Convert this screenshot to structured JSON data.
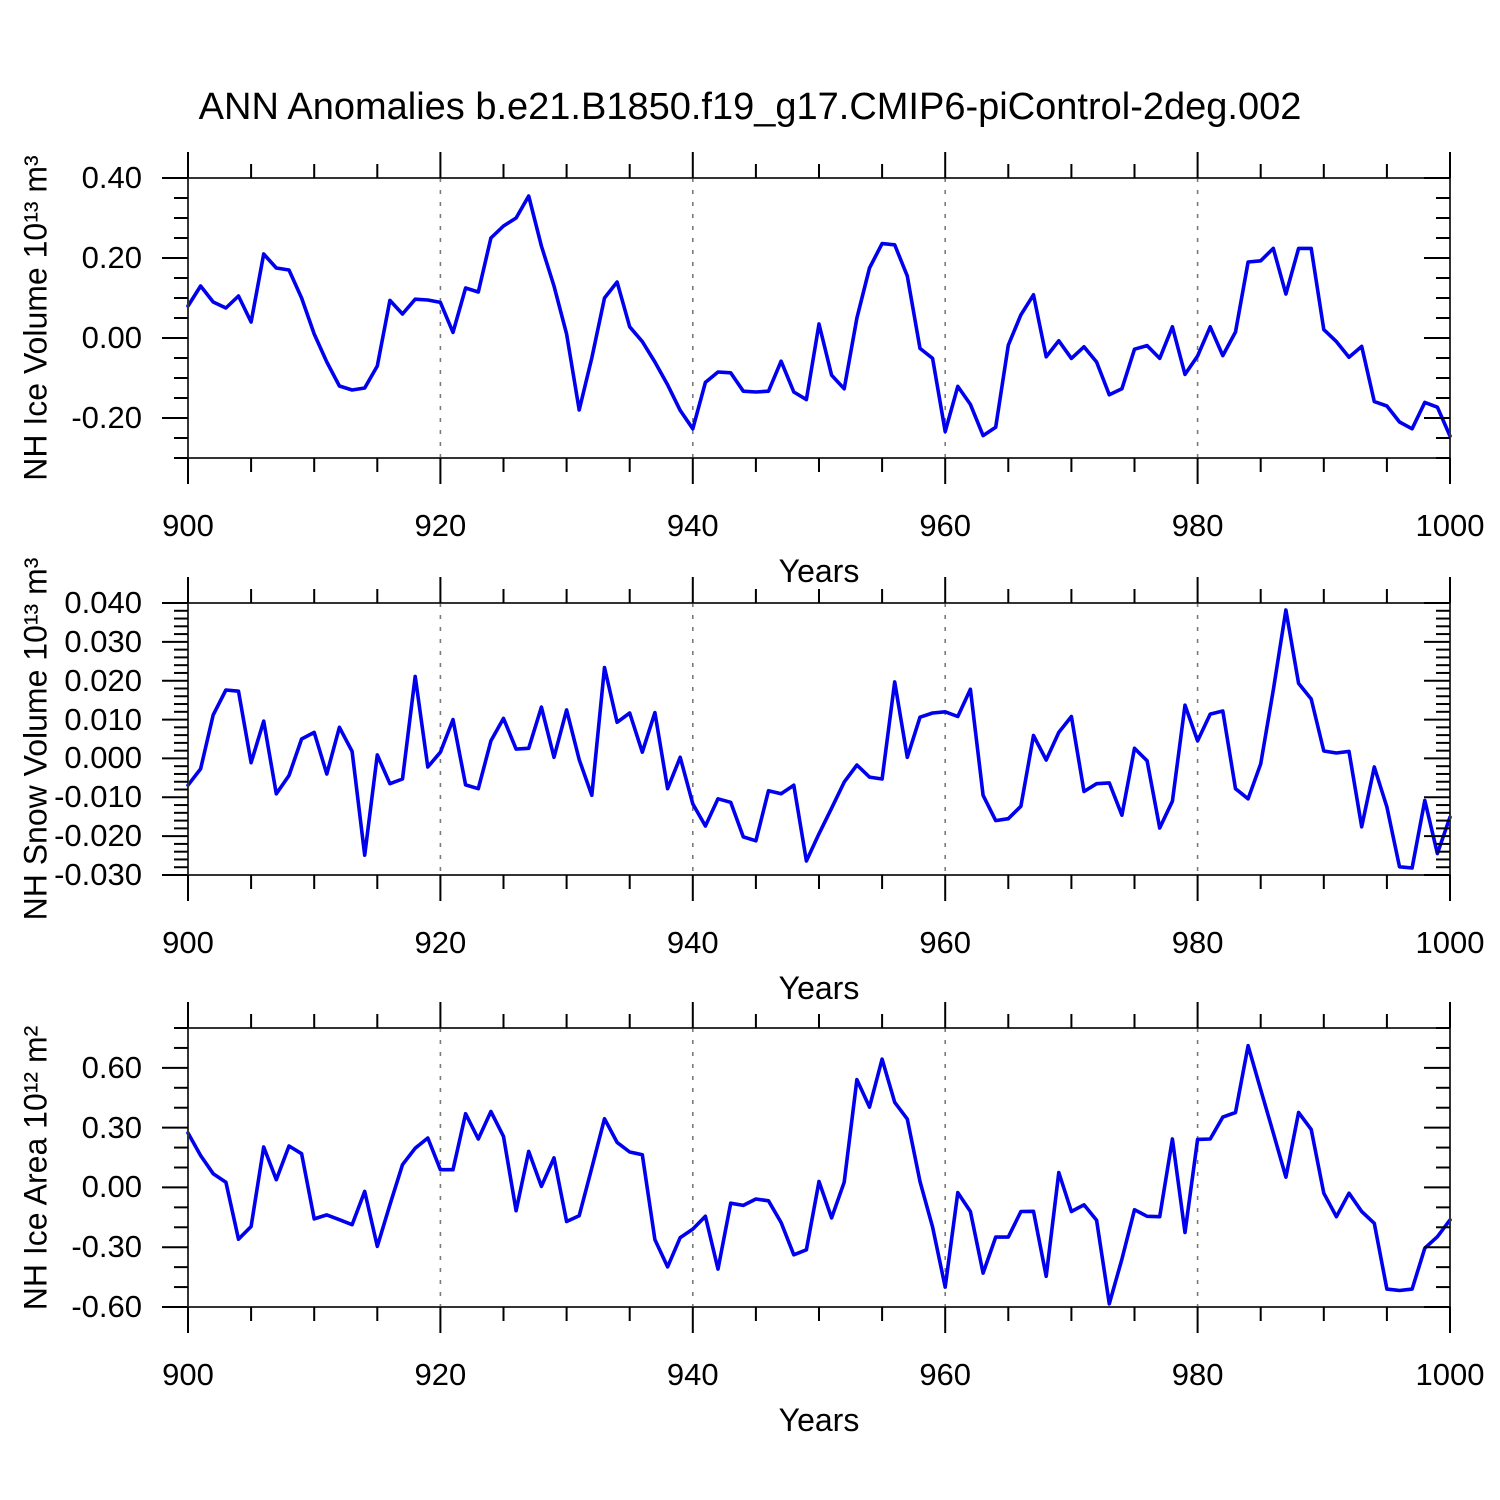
{
  "title": "ANN Anomalies b.e21.B1850.f19_g17.CMIP6-piControl-2deg.002",
  "colors": {
    "line": "#0000EE",
    "frame": "#333333",
    "tick": "#000000",
    "grid": "#7a7a7a",
    "background": "#ffffff",
    "text": "#000000"
  },
  "chart_data": [
    {
      "type": "line",
      "name": "nh-ice-volume",
      "ylabel": "NH Ice Volume 10¹³ m³",
      "xlabel": "Years",
      "x_start": 900,
      "x_end": 1000,
      "x_step": 1,
      "xticks": [
        900,
        920,
        940,
        960,
        980,
        1000
      ],
      "x_minor_step": 5,
      "grid_years": [
        920,
        940,
        960,
        980
      ],
      "ylim": [
        -0.3,
        0.4
      ],
      "ytick_values": [
        0.4,
        0.2,
        0.0,
        -0.2
      ],
      "ytick_labels": [
        "0.40",
        "0.20",
        "0.00",
        "-0.20"
      ],
      "y_minor_step": 0.05,
      "grid": false,
      "legend": null,
      "values": [
        0.08,
        0.13,
        0.09,
        0.075,
        0.105,
        0.04,
        0.21,
        0.175,
        0.17,
        0.1,
        0.01,
        -0.06,
        -0.12,
        -0.13,
        -0.125,
        -0.07,
        0.094,
        0.06,
        0.097,
        0.095,
        0.089,
        0.014,
        0.125,
        0.115,
        0.25,
        0.28,
        0.3,
        0.355,
        0.23,
        0.13,
        0.01,
        -0.18,
        -0.05,
        0.1,
        0.14,
        0.028,
        -0.009,
        -0.06,
        -0.117,
        -0.181,
        -0.227,
        -0.111,
        -0.085,
        -0.087,
        -0.133,
        -0.135,
        -0.133,
        -0.058,
        -0.135,
        -0.154,
        0.035,
        -0.093,
        -0.127,
        0.05,
        0.175,
        0.236,
        0.233,
        0.155,
        -0.026,
        -0.051,
        -0.234,
        -0.121,
        -0.166,
        -0.244,
        -0.223,
        -0.018,
        0.058,
        0.108,
        -0.047,
        -0.007,
        -0.051,
        -0.022,
        -0.06,
        -0.142,
        -0.127,
        -0.028,
        -0.019,
        -0.051,
        0.028,
        -0.091,
        -0.045,
        0.028,
        -0.044,
        0.015,
        0.19,
        0.193,
        0.224,
        0.11,
        0.224,
        0.224,
        0.021,
        -0.009,
        -0.048,
        -0.021,
        -0.159,
        -0.17,
        -0.21,
        -0.227,
        -0.161,
        -0.173,
        -0.245
      ]
    },
    {
      "type": "line",
      "name": "nh-snow-volume",
      "ylabel": "NH Snow Volume 10¹³ m³",
      "xlabel": "Years",
      "x_start": 900,
      "x_end": 1000,
      "x_step": 1,
      "xticks": [
        900,
        920,
        940,
        960,
        980,
        1000
      ],
      "x_minor_step": 5,
      "grid_years": [
        920,
        940,
        960,
        980
      ],
      "ylim": [
        -0.03,
        0.04
      ],
      "ytick_values": [
        0.04,
        0.03,
        0.02,
        0.01,
        0.0,
        -0.01,
        -0.02,
        -0.03
      ],
      "ytick_labels": [
        "0.040",
        "0.030",
        "0.020",
        "0.010",
        "0.000",
        "-0.010",
        "-0.020",
        "-0.030"
      ],
      "y_minor_step": 0.002,
      "grid": false,
      "legend": null,
      "values": [
        -0.0069,
        -0.0027,
        0.0112,
        0.0176,
        0.0173,
        -0.0011,
        0.0096,
        -0.0091,
        -0.0044,
        0.005,
        0.0067,
        -0.004,
        0.008,
        0.0018,
        -0.0249,
        0.0009,
        -0.0065,
        -0.0053,
        0.0211,
        -0.0022,
        0.0016,
        0.01,
        -0.0068,
        -0.0078,
        0.0045,
        0.0103,
        0.0024,
        0.0026,
        0.0132,
        0.0003,
        0.0125,
        -0.0003,
        -0.0095,
        0.0234,
        0.0093,
        0.0117,
        0.0016,
        0.0118,
        -0.0078,
        0.0003,
        -0.0117,
        -0.0174,
        -0.0104,
        -0.0113,
        -0.0202,
        -0.0212,
        -0.0083,
        -0.0091,
        -0.0069,
        -0.0264,
        -0.0194,
        -0.0128,
        -0.0061,
        -0.0017,
        -0.0048,
        -0.0053,
        0.0197,
        0.0003,
        0.0106,
        0.0117,
        0.012,
        0.0108,
        0.0178,
        -0.0095,
        -0.016,
        -0.0155,
        -0.0123,
        0.0059,
        -0.0004,
        0.0067,
        0.0108,
        -0.0085,
        -0.0065,
        -0.0063,
        -0.0146,
        0.0026,
        -0.0006,
        -0.0179,
        -0.011,
        0.0137,
        0.0045,
        0.0114,
        0.0122,
        -0.0078,
        -0.0104,
        -0.0014,
        0.0176,
        0.0382,
        0.0193,
        0.0153,
        0.0019,
        0.0014,
        0.0018,
        -0.0176,
        -0.0022,
        -0.0125,
        -0.0279,
        -0.0282,
        -0.0108,
        -0.0245,
        -0.0151
      ]
    },
    {
      "type": "line",
      "name": "nh-ice-area",
      "ylabel": "NH Ice Area 10¹² m²",
      "xlabel": "Years",
      "x_start": 900,
      "x_end": 1000,
      "x_step": 1,
      "xticks": [
        900,
        920,
        940,
        960,
        980,
        1000
      ],
      "x_minor_step": 5,
      "grid_years": [
        920,
        940,
        960,
        980
      ],
      "ylim": [
        -0.6,
        0.8
      ],
      "ytick_values": [
        0.6,
        0.3,
        0.0,
        -0.3,
        -0.6
      ],
      "ytick_labels": [
        "0.60",
        "0.30",
        "0.00",
        "-0.30",
        "-0.60"
      ],
      "y_minor_step": 0.1,
      "grid": false,
      "legend": null,
      "values": [
        0.273,
        0.16,
        0.069,
        0.026,
        -0.26,
        -0.196,
        0.203,
        0.039,
        0.208,
        0.169,
        -0.158,
        -0.138,
        -0.162,
        -0.187,
        -0.02,
        -0.296,
        -0.087,
        0.114,
        0.197,
        0.248,
        0.089,
        0.089,
        0.37,
        0.243,
        0.381,
        0.256,
        -0.117,
        0.181,
        0.005,
        0.148,
        -0.171,
        -0.142,
        0.098,
        0.345,
        0.226,
        0.178,
        0.164,
        -0.262,
        -0.399,
        -0.252,
        -0.209,
        -0.145,
        -0.41,
        -0.079,
        -0.09,
        -0.058,
        -0.067,
        -0.176,
        -0.338,
        -0.313,
        0.03,
        -0.153,
        0.026,
        0.541,
        0.403,
        0.644,
        0.427,
        0.343,
        0.03,
        -0.199,
        -0.5,
        -0.026,
        -0.121,
        -0.43,
        -0.249,
        -0.249,
        -0.121,
        -0.12,
        -0.446,
        0.075,
        -0.121,
        -0.087,
        -0.165,
        -0.584,
        -0.36,
        -0.112,
        -0.145,
        -0.147,
        0.243,
        -0.226,
        0.241,
        0.243,
        0.353,
        0.376,
        0.711,
        0.491,
        0.273,
        0.052,
        0.376,
        0.291,
        -0.029,
        -0.147,
        -0.029,
        -0.121,
        -0.18,
        -0.51,
        -0.517,
        -0.51,
        -0.305,
        -0.247,
        -0.163
      ]
    }
  ]
}
